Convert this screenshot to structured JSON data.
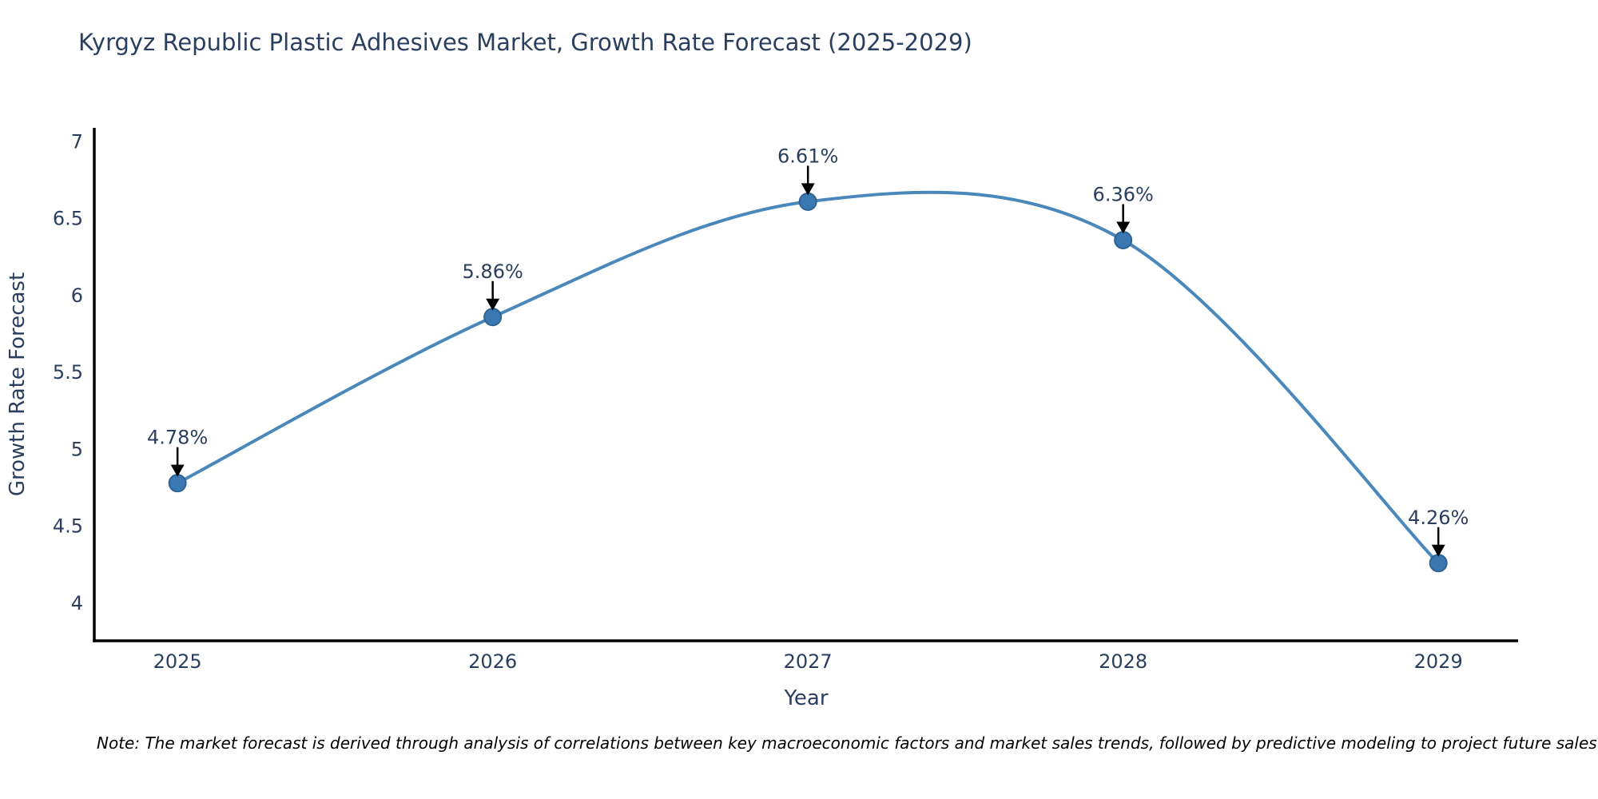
{
  "chart": {
    "title": "Kyrgyz Republic Plastic Adhesives Market, Growth Rate Forecast (2025-2029)",
    "note": "Note: The market forecast is derived through analysis of correlations between key macroeconomic factors and market sales trends, followed by predictive modeling to project future sales"
  },
  "chart_data": {
    "type": "line",
    "title": "Kyrgyz Republic Plastic Adhesives Market, Growth Rate Forecast (2025-2029)",
    "categories": [
      "2025",
      "2026",
      "2027",
      "2028",
      "2029"
    ],
    "x": [
      2025,
      2026,
      2027,
      2028,
      2029
    ],
    "values": [
      4.78,
      5.86,
      6.61,
      6.36,
      4.26
    ],
    "point_labels": [
      "4.78%",
      "5.86%",
      "6.61%",
      "6.36%",
      "4.26%"
    ],
    "xlabel": "Year",
    "ylabel": "Growth Rate Forecast",
    "yticks": [
      4,
      4.5,
      5,
      5.5,
      6,
      6.5,
      7
    ],
    "ytick_labels": [
      "4",
      "4.5",
      "5",
      "5.5",
      "6",
      "6.5",
      "7"
    ],
    "xlim": [
      2024.736,
      2029.253
    ],
    "ylim": [
      3.755,
      7.09
    ],
    "line_shape": "spline",
    "grid": false,
    "legend": "none",
    "colors": {
      "line": "#4a87ba",
      "marker_fill": "#3b78b2",
      "marker_edge": "#2e6396",
      "axis": "#000000",
      "text": "#2a3f5f",
      "annotation_arrow": "#000000",
      "background": "#ffffff"
    }
  }
}
